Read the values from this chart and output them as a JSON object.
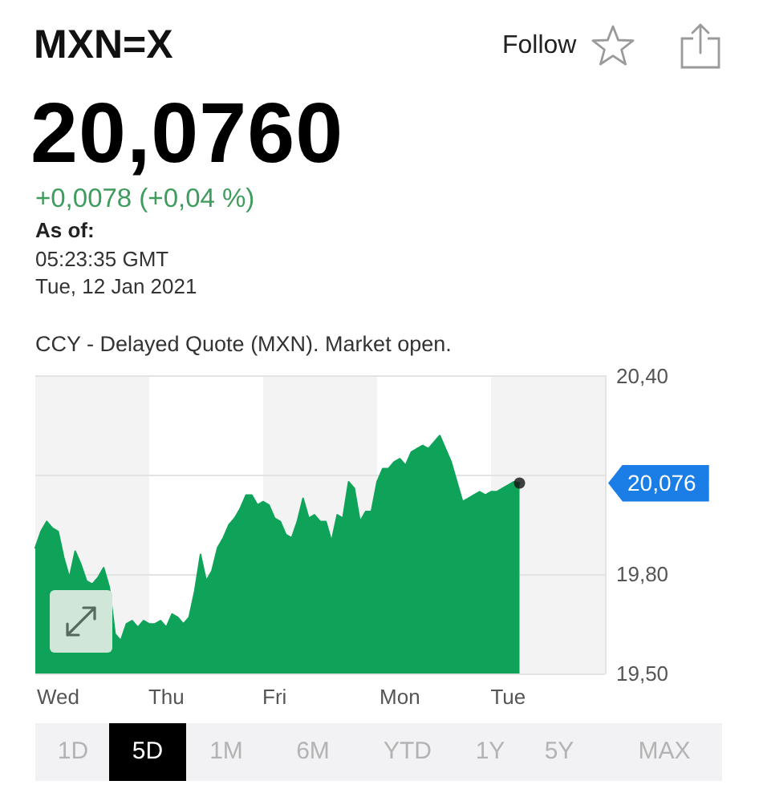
{
  "chart_data": {
    "type": "area",
    "title": "MXN=X",
    "subtitle": "20,0760",
    "annotations": [
      "+0,0078 (+0,04 %)",
      "As of:",
      "05:23:35 GMT",
      "Tue, 12 Jan 2021",
      "CCY - Delayed Quote (MXN). Market open.",
      "Follow",
      "1D",
      "5D",
      "1M",
      "6M",
      "YTD",
      "1Y",
      "5Y",
      "MAX",
      "20,076"
    ],
    "categories": [
      null,
      null,
      null,
      null,
      "Wed",
      null,
      null,
      null,
      null,
      null,
      null,
      null,
      null,
      null,
      null,
      null,
      null,
      null,
      null,
      null,
      null,
      null,
      null,
      "Thu",
      null,
      null,
      null,
      null,
      null,
      null,
      null,
      null,
      null,
      null,
      null,
      null,
      null,
      null,
      null,
      null,
      null,
      null,
      "Fri",
      null,
      null,
      null,
      null,
      null,
      null,
      null,
      null,
      null,
      null,
      null,
      null,
      null,
      null,
      null,
      null,
      null,
      null,
      null,
      null,
      null,
      "Mon",
      null,
      null,
      null,
      null,
      null,
      null,
      null,
      null,
      null,
      null,
      null,
      null,
      null,
      null,
      null,
      null,
      null,
      null,
      "Tue",
      null,
      null,
      null,
      null,
      null,
      null,
      null,
      null,
      null,
      null,
      null,
      null,
      null,
      null,
      null,
      null,
      null
    ],
    "series": [
      {
        "color": "#0fa35a",
        "values": [
          19.88,
          19.93,
          19.96,
          19.94,
          19.93,
          19.85,
          19.79,
          19.87,
          19.83,
          19.78,
          19.77,
          19.79,
          19.82,
          19.76,
          19.62,
          19.6,
          19.65,
          19.66,
          19.64,
          19.66,
          19.65,
          19.65,
          19.66,
          19.64,
          19.68,
          19.67,
          19.65,
          19.67,
          19.75,
          19.86,
          19.78,
          19.81,
          19.88,
          19.91,
          19.95,
          19.97,
          20.0,
          20.04,
          20.04,
          20.01,
          20.02,
          20.01,
          19.97,
          19.96,
          19.92,
          19.91,
          19.96,
          20.03,
          19.97,
          19.98,
          19.96,
          19.96,
          19.9,
          19.98,
          19.97,
          20.08,
          20.06,
          19.96,
          19.99,
          19.99,
          20.08,
          20.12,
          20.12,
          20.14,
          20.15,
          20.13,
          20.17,
          20.18,
          20.19,
          20.18,
          20.2,
          20.22,
          20.18,
          20.14,
          20.08,
          20.02,
          20.03,
          20.04,
          20.05,
          20.04,
          20.05,
          20.05,
          20.06,
          20.07,
          20.08,
          20.076,
          null,
          null,
          null,
          null,
          null,
          null,
          null,
          null,
          null,
          null,
          null,
          null,
          null,
          null,
          null
        ]
      },
      {
        "type": "scatter",
        "color": "#111111",
        "values": [
          null,
          null,
          null,
          null,
          null,
          null,
          null,
          null,
          null,
          null,
          null,
          null,
          null,
          null,
          null,
          null,
          null,
          null,
          null,
          null,
          null,
          null,
          null,
          null,
          null,
          null,
          null,
          null,
          null,
          null,
          null,
          null,
          null,
          null,
          null,
          null,
          null,
          null,
          null,
          null,
          null,
          null,
          null,
          null,
          null,
          null,
          null,
          null,
          null,
          null,
          null,
          null,
          null,
          null,
          null,
          null,
          null,
          null,
          null,
          null,
          null,
          null,
          null,
          null,
          null,
          null,
          null,
          null,
          null,
          null,
          null,
          null,
          null,
          null,
          null,
          null,
          null,
          null,
          null,
          null,
          null,
          null,
          null,
          null,
          null,
          20.076,
          null,
          null,
          null,
          null,
          null,
          null,
          null,
          null,
          null,
          null,
          null,
          null,
          null,
          null,
          null
        ]
      }
    ],
    "ylim": [
      19.5,
      20.4
    ],
    "yticks": [
      {
        "value": 19.5,
        "label": "19,50"
      },
      {
        "value": 19.8,
        "label": "19,80"
      },
      {
        "value": 20.1,
        "label": null
      },
      {
        "value": 20.4,
        "label": "20,40"
      }
    ],
    "grid": "y"
  }
}
